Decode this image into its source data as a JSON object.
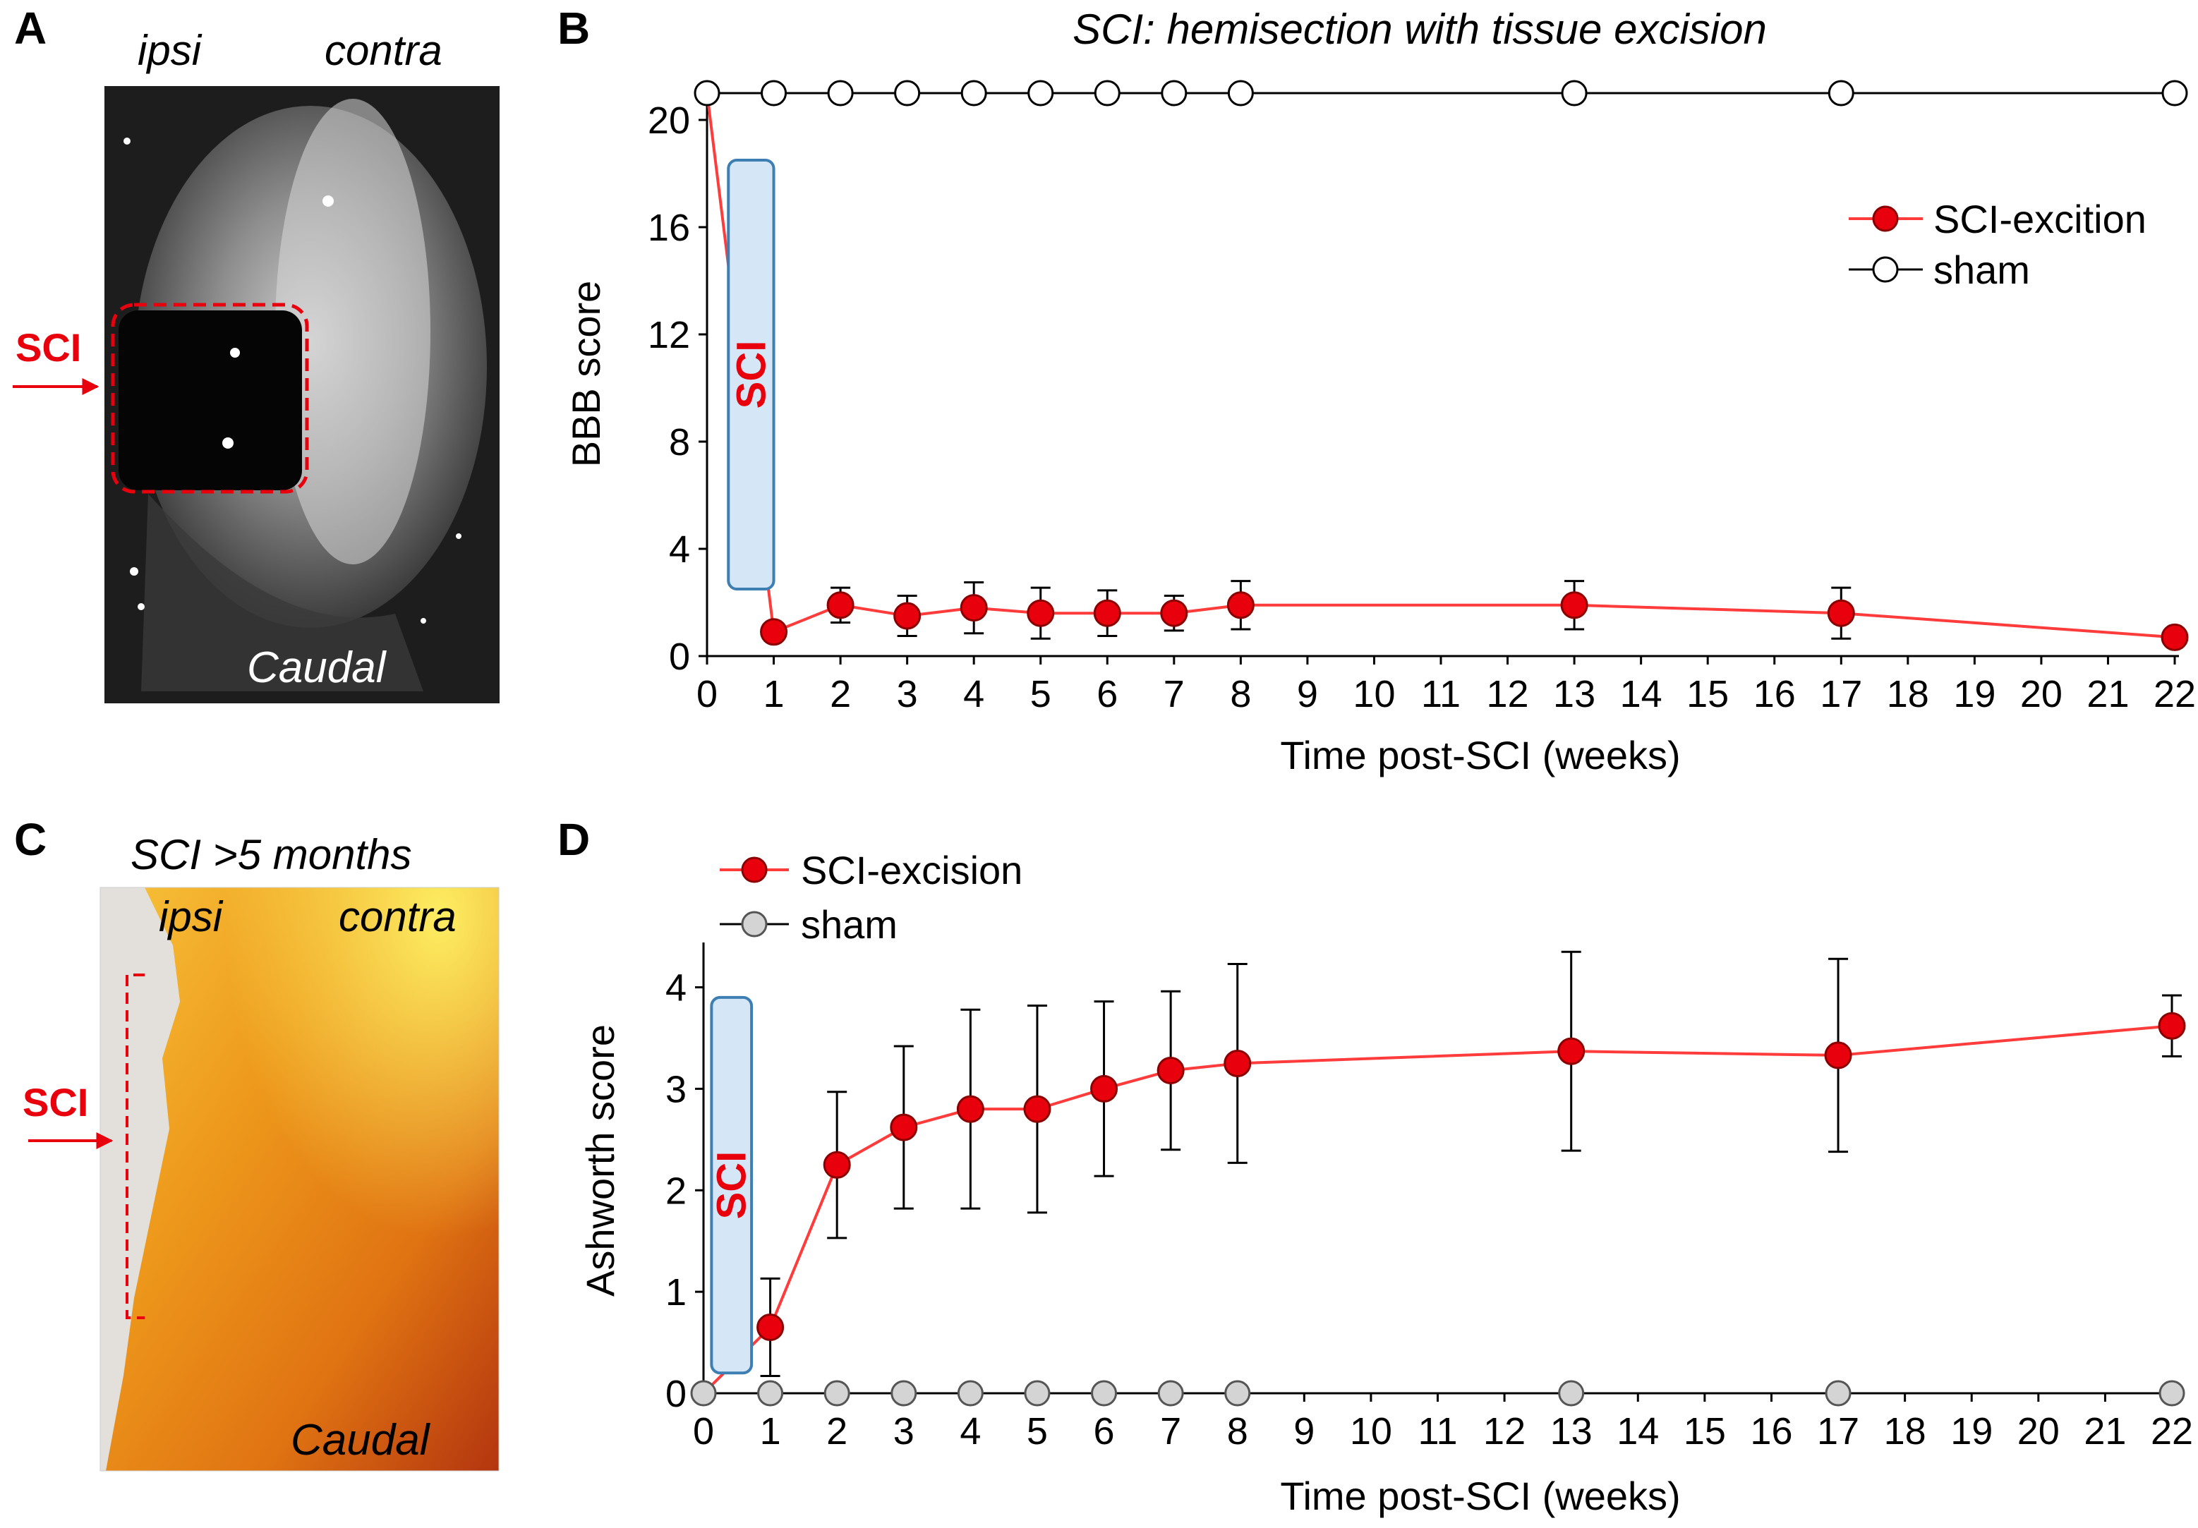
{
  "figure": {
    "colors": {
      "sci": "#e8000c",
      "sci_stroke": "#8a0000",
      "line_red": "#ff3b3b",
      "sham_open": "#ffffff",
      "sham_gray": "#d4d4d4",
      "axis": "#000000",
      "sci_box_fill": "#d5e7f7",
      "sci_box_stroke": "#3d7fb3"
    },
    "panelA": {
      "letter": "A",
      "ipsi": "ipsi",
      "contra": "contra",
      "sci_label": "SCI",
      "caudal": "Caudal"
    },
    "panelC": {
      "letter": "C",
      "title": "SCI >5 months",
      "ipsi": "ipsi",
      "contra": "contra",
      "sci_label": "SCI",
      "caudal": "Caudal"
    }
  },
  "chart_data": [
    {
      "id": "B",
      "panel_letter": "B",
      "type": "line",
      "title": "SCI: hemisection with tissue excision",
      "xlabel": "Time post-SCI (weeks)",
      "ylabel": "BBB score",
      "xlim": [
        0,
        22
      ],
      "ylim": [
        0,
        21
      ],
      "x_ticks": [
        0,
        1,
        2,
        3,
        4,
        5,
        6,
        7,
        8,
        9,
        10,
        11,
        12,
        13,
        14,
        15,
        16,
        17,
        18,
        19,
        20,
        21,
        22
      ],
      "x_tick_labels": [
        "0",
        "1",
        "2",
        "3",
        "4",
        "5",
        "6",
        "7",
        "8",
        "9",
        "10",
        "11",
        "12",
        "13",
        "14",
        "15",
        "16",
        "17",
        "18",
        "19",
        "20",
        "21",
        "22"
      ],
      "y_ticks": [
        0,
        4,
        8,
        12,
        16,
        20
      ],
      "y_tick_labels": [
        "0",
        "4",
        "8",
        "12",
        "16",
        "20"
      ],
      "sci_box_label": "SCI",
      "sci_box_range": {
        "x": [
          0.32,
          1.0
        ],
        "y": [
          2.5,
          18.5
        ]
      },
      "legend_position": "top-right",
      "series": [
        {
          "name": "SCI-excition",
          "style": "filled-red",
          "x": [
            0,
            1,
            2,
            3,
            4,
            5,
            6,
            7,
            8,
            13,
            17,
            22
          ],
          "y": [
            21,
            0.9,
            1.9,
            1.5,
            1.8,
            1.6,
            1.6,
            1.6,
            1.9,
            1.9,
            1.6,
            0.7
          ],
          "err": [
            0,
            0.2,
            0.65,
            0.75,
            0.95,
            0.95,
            0.85,
            0.65,
            0.9,
            0.9,
            0.95,
            0.15
          ],
          "marker_from": 1
        },
        {
          "name": "sham",
          "style": "open",
          "x": [
            0,
            1,
            2,
            3,
            4,
            5,
            6,
            7,
            8,
            13,
            17,
            22
          ],
          "y": [
            21,
            21,
            21,
            21,
            21,
            21,
            21,
            21,
            21,
            21,
            21,
            21
          ],
          "err": [
            0,
            0,
            0,
            0,
            0,
            0,
            0,
            0,
            0,
            0,
            0,
            0
          ],
          "marker_from": 0
        }
      ]
    },
    {
      "id": "D",
      "panel_letter": "D",
      "type": "line",
      "title": "",
      "xlabel": "Time post-SCI (weeks)",
      "ylabel": "Ashworth score",
      "xlim": [
        0,
        22
      ],
      "ylim": [
        0,
        4.4
      ],
      "x_ticks": [
        0,
        1,
        2,
        3,
        4,
        5,
        6,
        7,
        8,
        9,
        10,
        11,
        12,
        13,
        14,
        15,
        16,
        17,
        18,
        19,
        20,
        21,
        22
      ],
      "x_tick_labels": [
        "0",
        "1",
        "2",
        "3",
        "4",
        "5",
        "6",
        "7",
        "8",
        "9",
        "10",
        "11",
        "12",
        "13",
        "14",
        "15",
        "16",
        "17",
        "18",
        "19",
        "20",
        "21",
        "22"
      ],
      "y_ticks": [
        0,
        1,
        2,
        3,
        4
      ],
      "y_tick_labels": [
        "0",
        "1",
        "2",
        "3",
        "4"
      ],
      "sci_box_label": "SCI",
      "sci_box_range": {
        "x": [
          0.12,
          0.72
        ],
        "y": [
          0.2,
          3.9
        ]
      },
      "legend_position": "top-left",
      "series": [
        {
          "name": "SCI-excision",
          "style": "filled-red",
          "x": [
            0,
            1,
            2,
            3,
            4,
            5,
            6,
            7,
            8,
            13,
            17,
            22
          ],
          "y": [
            0,
            0.65,
            2.25,
            2.62,
            2.8,
            2.8,
            3.0,
            3.18,
            3.25,
            3.37,
            3.33,
            3.62
          ],
          "err": [
            0,
            0.48,
            0.72,
            0.8,
            0.98,
            1.02,
            0.86,
            0.78,
            0.98,
            0.98,
            0.95,
            0.3
          ],
          "marker_from": 1
        },
        {
          "name": "sham",
          "style": "gray",
          "x": [
            0,
            1,
            2,
            3,
            4,
            5,
            6,
            7,
            8,
            13,
            17,
            22
          ],
          "y": [
            0,
            0,
            0,
            0,
            0,
            0,
            0,
            0,
            0,
            0,
            0,
            0
          ],
          "err": [
            0,
            0,
            0,
            0,
            0,
            0,
            0,
            0,
            0,
            0,
            0,
            0
          ],
          "marker_from": 0
        }
      ]
    }
  ]
}
